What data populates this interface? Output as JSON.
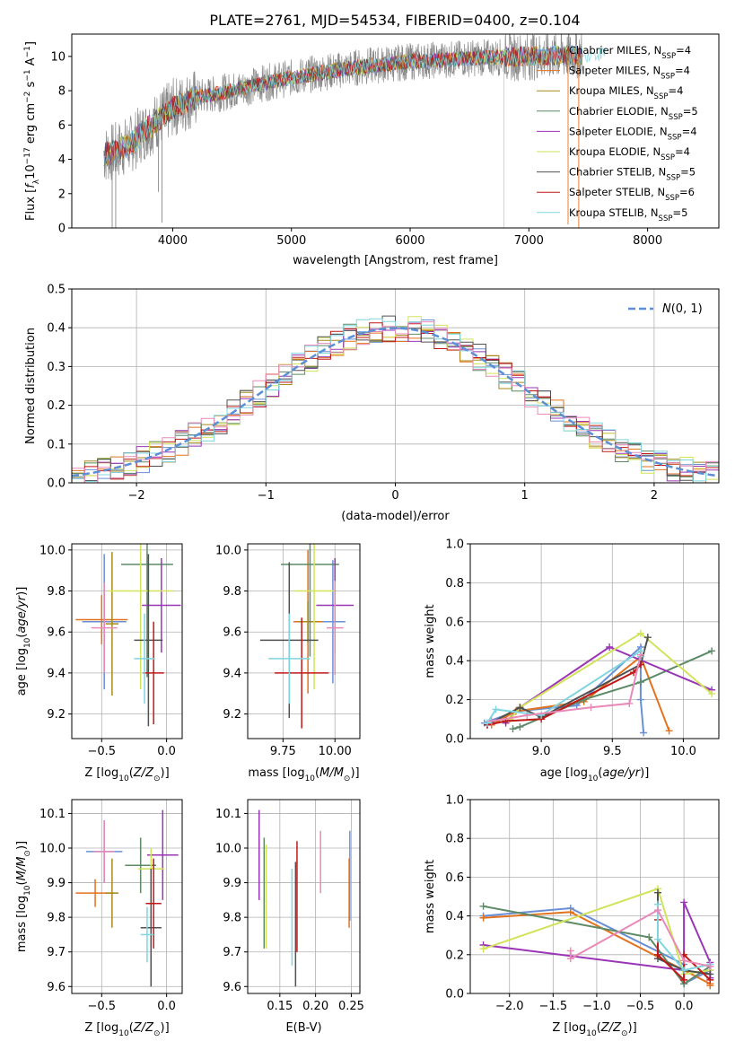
{
  "figure": {
    "title": "PLATE=2761, MJD=54534, FIBERID=0400, z=0.104"
  },
  "colors": {
    "Chabrier MILES": "#6a8fd6",
    "Salpeter MILES": "#e2721e",
    "Kroupa MILES": "#a88a1a",
    "Chabrier ELODIE": "#5c8a66",
    "Salpeter ELODIE": "#9a35b6",
    "Kroupa ELODIE": "#d2e35a",
    "Chabrier STELIB": "#505050",
    "Salpeter STELIB": "#c01818",
    "Kroupa STELIB": "#7fd5de",
    "pink": "#e889b8",
    "data": "#8a8a8a",
    "gauss": "#5b8fd6"
  },
  "chart_data": [
    {
      "id": "spectrum",
      "type": "line",
      "xlabel": "wavelength [Angstrom, rest frame]",
      "ylabel": "Flux [f_λ10^-17 erg cm^-2 s^-1 A^-1]",
      "xlim": [
        3150,
        8600
      ],
      "ylim": [
        0,
        11.3
      ],
      "xticks": [
        4000,
        5000,
        6000,
        7000,
        8000
      ],
      "yticks": [
        0,
        2,
        4,
        6,
        8,
        10
      ],
      "grid": false,
      "legend_position": "right",
      "legend": [
        {
          "label": "Chabrier MILES, N",
          "sub": "SSP",
          "suffix": "=4",
          "key": "Chabrier MILES"
        },
        {
          "label": "Salpeter MILES, N",
          "sub": "SSP",
          "suffix": "=4",
          "key": "Salpeter MILES"
        },
        {
          "label": "Kroupa MILES, N",
          "sub": "SSP",
          "suffix": "=4",
          "key": "Kroupa MILES"
        },
        {
          "label": "Chabrier ELODIE, N",
          "sub": "SSP",
          "suffix": "=5",
          "key": "Chabrier ELODIE"
        },
        {
          "label": "Salpeter ELODIE, N",
          "sub": "SSP",
          "suffix": "=4",
          "key": "Salpeter ELODIE"
        },
        {
          "label": "Kroupa ELODIE, N",
          "sub": "SSP",
          "suffix": "=4",
          "key": "Kroupa ELODIE"
        },
        {
          "label": "Chabrier STELIB, N",
          "sub": "SSP",
          "suffix": "=5",
          "key": "Chabrier STELIB"
        },
        {
          "label": "Salpeter STELIB, N",
          "sub": "SSP",
          "suffix": "=6",
          "key": "Salpeter STELIB"
        },
        {
          "label": "Kroupa STELIB, N",
          "sub": "SSP",
          "suffix": "=5",
          "key": "Kroupa STELIB"
        }
      ],
      "continuum": [
        [
          3420,
          4.3
        ],
        [
          3500,
          4.4
        ],
        [
          3650,
          4.9
        ],
        [
          3750,
          5.6
        ],
        [
          3900,
          6.4
        ],
        [
          4000,
          7.0
        ],
        [
          4200,
          7.6
        ],
        [
          4500,
          8.0
        ],
        [
          4800,
          8.5
        ],
        [
          5200,
          9.0
        ],
        [
          5600,
          9.4
        ],
        [
          6000,
          9.7
        ],
        [
          6500,
          9.9
        ],
        [
          7000,
          10.0
        ],
        [
          7500,
          10.1
        ],
        [
          8000,
          10.2
        ],
        [
          8600,
          10.2
        ]
      ],
      "spikes": [
        [
          3490,
          -0.3
        ],
        [
          3520,
          0.0
        ],
        [
          3880,
          2.1
        ],
        [
          3910,
          0.3
        ],
        [
          6790,
          0.0
        ],
        [
          7330,
          0.2
        ],
        [
          7420,
          0.0
        ]
      ]
    },
    {
      "id": "residuals",
      "type": "line",
      "xlabel": "(data-model)/error",
      "ylabel": "Normed distribution",
      "xlim": [
        -2.5,
        2.5
      ],
      "ylim": [
        0,
        0.5
      ],
      "xticks": [
        -2,
        -1,
        0,
        1,
        2
      ],
      "yticks": [
        0.0,
        0.1,
        0.2,
        0.3,
        0.4,
        0.5
      ],
      "grid": true,
      "legend_position": "top-right",
      "gauss_label": "N(0, 1)",
      "bin_width": 0.1
    },
    {
      "id": "z-age",
      "type": "scatter",
      "xlabel": "Z [log10(Z/Z⊙)]",
      "ylabel": "age [log10(age/yr)]",
      "xlim": [
        -0.73,
        0.12
      ],
      "ylim": [
        9.08,
        10.03
      ],
      "xticks": [
        -0.5,
        0.0
      ],
      "yticks": [
        9.2,
        9.4,
        9.6,
        9.8,
        10.0
      ],
      "grid": true,
      "points": [
        {
          "key": "Chabrier MILES",
          "x": -0.48,
          "y": 9.65,
          "xerr": 0.17,
          "yerr": 0.33
        },
        {
          "key": "Salpeter MILES",
          "x": -0.5,
          "y": 9.66,
          "xerr": 0.2,
          "yerr": 0.12
        },
        {
          "key": "Kroupa MILES",
          "x": -0.42,
          "y": 9.64,
          "xerr": 0.05,
          "yerr": 0.35
        },
        {
          "key": "Chabrier ELODIE",
          "x": -0.15,
          "y": 9.93,
          "xerr": 0.2,
          "yerr": 0.55
        },
        {
          "key": "Salpeter ELODIE",
          "x": -0.04,
          "y": 9.73,
          "xerr": 0.15,
          "yerr": 0.23
        },
        {
          "key": "Kroupa ELODIE",
          "x": -0.2,
          "y": 9.8,
          "xerr": 0.25,
          "yerr": 0.48
        },
        {
          "key": "Chabrier STELIB",
          "x": -0.14,
          "y": 9.56,
          "xerr": 0.11,
          "yerr": 0.42
        },
        {
          "key": "Salpeter STELIB",
          "x": -0.1,
          "y": 9.4,
          "xerr": 0.08,
          "yerr": 0.25
        },
        {
          "key": "Kroupa STELIB",
          "x": -0.17,
          "y": 9.47,
          "xerr": 0.08,
          "yerr": 0.22
        },
        {
          "key": "pink",
          "x": -0.48,
          "y": 9.62,
          "xerr": 0.1,
          "yerr": 0.22
        }
      ]
    },
    {
      "id": "mass-age",
      "type": "scatter",
      "xlabel": "mass [log10(M/M⊙)]",
      "ylabel": "",
      "xlim": [
        9.58,
        10.12
      ],
      "ylim": [
        9.08,
        10.03
      ],
      "xticks": [
        9.75,
        10.0
      ],
      "yticks": [
        9.2,
        9.4,
        9.6,
        9.8,
        10.0
      ],
      "grid": true,
      "points": [
        {
          "key": "Chabrier MILES",
          "x": 9.99,
          "y": 9.65,
          "xerr": 0.06,
          "yerr": 0.3
        },
        {
          "key": "Salpeter MILES",
          "x": 9.87,
          "y": 9.65,
          "xerr": 0.07,
          "yerr": 0.35
        },
        {
          "key": "Kroupa MILES",
          "x": 9.87,
          "y": 9.65,
          "xerr": 0.05,
          "yerr": 0.1
        },
        {
          "key": "Chabrier ELODIE",
          "x": 9.88,
          "y": 9.93,
          "xerr": 0.14,
          "yerr": 0.45
        },
        {
          "key": "Salpeter ELODIE",
          "x": 10.0,
          "y": 9.73,
          "xerr": 0.09,
          "yerr": 0.23
        },
        {
          "key": "Kroupa ELODIE",
          "x": 9.9,
          "y": 9.8,
          "xerr": 0.1,
          "yerr": 0.48
        },
        {
          "key": "Chabrier STELIB",
          "x": 9.78,
          "y": 9.56,
          "xerr": 0.14,
          "yerr": 0.38
        },
        {
          "key": "Salpeter STELIB",
          "x": 9.84,
          "y": 9.4,
          "xerr": 0.13,
          "yerr": 0.27
        },
        {
          "key": "Kroupa STELIB",
          "x": 9.78,
          "y": 9.47,
          "xerr": 0.1,
          "yerr": 0.22
        },
        {
          "key": "pink",
          "x": 10.0,
          "y": 9.62,
          "xerr": 0.04,
          "yerr": 0.23
        }
      ]
    },
    {
      "id": "age-weight",
      "type": "line",
      "xlabel": "age [log10(age/yr)]",
      "ylabel": "mass weight",
      "xlim": [
        8.5,
        10.25
      ],
      "ylim": [
        0,
        1.0
      ],
      "xticks": [
        9.0,
        9.5,
        10.0
      ],
      "yticks": [
        0.0,
        0.2,
        0.4,
        0.6,
        0.8,
        1.0
      ],
      "grid": true,
      "series": [
        {
          "key": "Chabrier MILES",
          "x": [
            8.6,
            8.82,
            9.25,
            9.7,
            9.7,
            9.72
          ],
          "y": [
            0.08,
            0.14,
            0.17,
            0.47,
            0.2,
            0.03
          ]
        },
        {
          "key": "Salpeter MILES",
          "x": [
            8.65,
            8.82,
            9.3,
            9.7,
            9.9
          ],
          "y": [
            0.07,
            0.14,
            0.19,
            0.42,
            0.04
          ]
        },
        {
          "key": "Chabrier ELODIE",
          "x": [
            8.8,
            8.85,
            9.3,
            9.7,
            10.2
          ],
          "y": [
            0.05,
            0.06,
            0.2,
            0.29,
            0.45
          ]
        },
        {
          "key": "Salpeter ELODIE",
          "x": [
            8.75,
            8.85,
            9.48,
            10.2
          ],
          "y": [
            0.08,
            0.16,
            0.47,
            0.25
          ]
        },
        {
          "key": "Kroupa ELODIE",
          "x": [
            8.78,
            8.85,
            9.7,
            10.2
          ],
          "y": [
            0.1,
            0.16,
            0.54,
            0.23
          ]
        },
        {
          "key": "Chabrier STELIB",
          "x": [
            8.62,
            8.85,
            9.0,
            9.7,
            9.75
          ],
          "y": [
            0.07,
            0.16,
            0.11,
            0.38,
            0.52
          ]
        },
        {
          "key": "Salpeter STELIB",
          "x": [
            8.62,
            8.75,
            9.0,
            9.65,
            9.7
          ],
          "y": [
            0.07,
            0.09,
            0.1,
            0.34,
            0.38
          ]
        },
        {
          "key": "Kroupa STELIB",
          "x": [
            8.62,
            8.68,
            9.0,
            9.7,
            9.7
          ],
          "y": [
            0.08,
            0.15,
            0.12,
            0.45,
            0.42
          ]
        },
        {
          "key": "pink",
          "x": [
            8.65,
            8.9,
            9.35,
            9.62,
            9.7
          ],
          "y": [
            0.09,
            0.12,
            0.16,
            0.18,
            0.43
          ]
        }
      ]
    },
    {
      "id": "z-mass",
      "type": "scatter",
      "xlabel": "Z [log10(Z/Z⊙)]",
      "ylabel": "mass [log10(M/M⊙)]",
      "xlim": [
        -0.73,
        0.12
      ],
      "ylim": [
        9.58,
        10.14
      ],
      "xticks": [
        -0.5,
        0.0
      ],
      "yticks": [
        9.6,
        9.7,
        9.8,
        9.9,
        10.0,
        10.1
      ],
      "grid": true,
      "points": [
        {
          "key": "Chabrier MILES",
          "x": -0.48,
          "y": 9.99,
          "xerr": 0.14,
          "yerr": 0.09
        },
        {
          "key": "Salpeter MILES",
          "x": -0.55,
          "y": 9.87,
          "xerr": 0.15,
          "yerr": 0.04
        },
        {
          "key": "Kroupa MILES",
          "x": -0.42,
          "y": 9.87,
          "xerr": 0.05,
          "yerr": 0.1
        },
        {
          "key": "Chabrier ELODIE",
          "x": -0.2,
          "y": 9.95,
          "xerr": 0.12,
          "yerr": 0.08
        },
        {
          "key": "Salpeter ELODIE",
          "x": -0.03,
          "y": 9.98,
          "xerr": 0.12,
          "yerr": 0.13
        },
        {
          "key": "Kroupa ELODIE",
          "x": -0.12,
          "y": 9.94,
          "xerr": 0.1,
          "yerr": 0.06
        },
        {
          "key": "Chabrier STELIB",
          "x": -0.12,
          "y": 9.77,
          "xerr": 0.08,
          "yerr": 0.17
        },
        {
          "key": "Salpeter STELIB",
          "x": -0.1,
          "y": 9.84,
          "xerr": 0.06,
          "yerr": 0.13
        },
        {
          "key": "Kroupa STELIB",
          "x": -0.15,
          "y": 9.75,
          "xerr": 0.05,
          "yerr": 0.08
        },
        {
          "key": "pink",
          "x": -0.48,
          "y": 9.99,
          "xerr": 0.08,
          "yerr": 0.09
        }
      ]
    },
    {
      "id": "ebv-mass",
      "type": "scatter",
      "xlabel": "E(B-V)",
      "ylabel": "",
      "xlim": [
        0.105,
        0.262
      ],
      "ylim": [
        9.58,
        10.14
      ],
      "xticks": [
        0.15,
        0.2,
        0.25
      ],
      "yticks": [
        9.6,
        9.7,
        9.8,
        9.9,
        10.0,
        10.1
      ],
      "grid": true,
      "points": [
        {
          "key": "Chabrier MILES",
          "x": 0.248,
          "y": 9.92,
          "xerr": 0,
          "yerr": 0.13
        },
        {
          "key": "Salpeter MILES",
          "x": 0.247,
          "y": 9.87,
          "xerr": 0,
          "yerr": 0.1
        },
        {
          "key": "Chabrier ELODIE",
          "x": 0.128,
          "y": 9.87,
          "xerr": 0,
          "yerr": 0.16
        },
        {
          "key": "Salpeter ELODIE",
          "x": 0.121,
          "y": 9.98,
          "xerr": 0,
          "yerr": 0.13
        },
        {
          "key": "Kroupa ELODIE",
          "x": 0.131,
          "y": 9.86,
          "xerr": 0,
          "yerr": 0.15
        },
        {
          "key": "Chabrier STELIB",
          "x": 0.172,
          "y": 9.78,
          "xerr": 0,
          "yerr": 0.18
        },
        {
          "key": "Salpeter STELIB",
          "x": 0.174,
          "y": 9.86,
          "xerr": 0,
          "yerr": 0.16
        },
        {
          "key": "Kroupa STELIB",
          "x": 0.167,
          "y": 9.8,
          "xerr": 0,
          "yerr": 0.14
        },
        {
          "key": "pink",
          "x": 0.207,
          "y": 9.96,
          "xerr": 0,
          "yerr": 0.09
        }
      ]
    },
    {
      "id": "z-weight",
      "type": "line",
      "xlabel": "Z [log10(Z/Z⊙)]",
      "ylabel": "mass weight",
      "xlim": [
        -2.45,
        0.4
      ],
      "ylim": [
        0,
        1.0
      ],
      "xticks": [
        -2.0,
        -1.5,
        -1.0,
        -0.5,
        0.0
      ],
      "yticks": [
        0.0,
        0.2,
        0.4,
        0.6,
        0.8,
        1.0
      ],
      "grid": true,
      "series": [
        {
          "key": "Chabrier MILES",
          "x": [
            -2.3,
            -1.3,
            0.0,
            0.0,
            0.3,
            0.3
          ],
          "y": [
            0.4,
            0.44,
            0.15,
            0.05,
            0.12,
            0.08
          ]
        },
        {
          "key": "Salpeter MILES",
          "x": [
            -2.3,
            -1.3,
            0.0,
            0.3,
            0.3
          ],
          "y": [
            0.39,
            0.42,
            0.12,
            0.05,
            0.04
          ]
        },
        {
          "key": "Chabrier ELODIE",
          "x": [
            -2.3,
            -0.4,
            0.0,
            0.3
          ],
          "y": [
            0.45,
            0.29,
            0.05,
            0.14
          ]
        },
        {
          "key": "Salpeter ELODIE",
          "x": [
            -2.3,
            0.0,
            0.0,
            0.3,
            0.3
          ],
          "y": [
            0.25,
            0.12,
            0.47,
            0.16,
            0.08
          ]
        },
        {
          "key": "Kroupa ELODIE",
          "x": [
            -2.3,
            -0.3,
            0.0,
            0.3
          ],
          "y": [
            0.23,
            0.54,
            0.1,
            0.12
          ]
        },
        {
          "key": "Chabrier STELIB",
          "x": [
            -0.3,
            -0.3,
            0.0,
            0.3
          ],
          "y": [
            0.52,
            0.18,
            0.12,
            0.1
          ]
        },
        {
          "key": "Salpeter STELIB",
          "x": [
            -0.3,
            -0.3,
            0.0,
            0.0,
            0.3
          ],
          "y": [
            0.38,
            0.2,
            0.07,
            0.2,
            0.07
          ]
        },
        {
          "key": "Kroupa STELIB",
          "x": [
            -0.3,
            -0.3,
            0.0,
            0.3
          ],
          "y": [
            0.46,
            0.28,
            0.12,
            0.15
          ]
        },
        {
          "key": "pink",
          "x": [
            -1.3,
            -1.3,
            -0.3,
            0.0,
            0.3
          ],
          "y": [
            0.22,
            0.18,
            0.43,
            0.17,
            0.14
          ]
        }
      ]
    }
  ]
}
